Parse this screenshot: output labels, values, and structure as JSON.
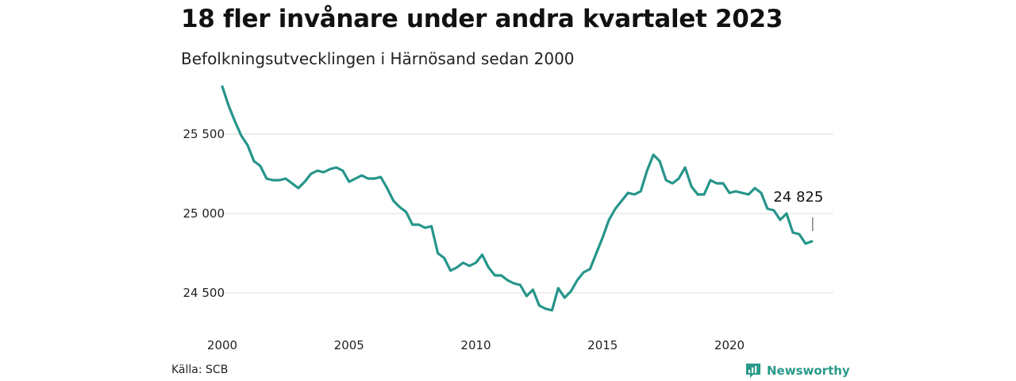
{
  "title": "18 fler invånare under andra kvartalet 2023",
  "subtitle": "Befolkningsutvecklingen i Härnösand sedan 2000",
  "source": "Källa: SCB",
  "brand": {
    "name": "Newsworthy",
    "icon": "bar-chart-logo-icon",
    "color": "#2a9a8a"
  },
  "chart_data": {
    "type": "line",
    "title": "18 fler invånare under andra kvartalet 2023",
    "subtitle": "Befolkningsutvecklingen i Härnösand sedan 2000",
    "xlabel": "",
    "ylabel": "",
    "grid": true,
    "line_color": "#26958a",
    "xlim": [
      2000,
      2024.1
    ],
    "ylim": [
      24370,
      25820
    ],
    "x_ticks": [
      2000,
      2005,
      2010,
      2015,
      2020
    ],
    "x_tick_labels": [
      "2000",
      "2005",
      "2010",
      "2015",
      "2020"
    ],
    "y_ticks": [
      24500,
      25000,
      25500
    ],
    "y_tick_labels": [
      "24 500",
      "25 000",
      "25 500"
    ],
    "annotation": {
      "text": "24 825",
      "x": 2023.25,
      "y": 24825
    },
    "series": [
      {
        "x": [
          2000,
          2000.25,
          2000.5,
          2000.75,
          2001,
          2001.25,
          2001.5,
          2001.75,
          2002,
          2002.25,
          2002.5,
          2002.75,
          2003,
          2003.25,
          2003.5,
          2003.75,
          2004,
          2004.25,
          2004.5,
          2004.75,
          2005,
          2005.25,
          2005.5,
          2005.75,
          2006,
          2006.25,
          2006.5,
          2006.75,
          2007,
          2007.25,
          2007.5,
          2007.75,
          2008,
          2008.25,
          2008.5,
          2008.75,
          2009,
          2009.25,
          2009.5,
          2009.75,
          2010,
          2010.25,
          2010.5,
          2010.75,
          2011,
          2011.25,
          2011.5,
          2011.75,
          2012,
          2012.25,
          2012.5,
          2012.75,
          2013,
          2013.25,
          2013.5,
          2013.75,
          2014,
          2014.25,
          2014.5,
          2014.75,
          2015,
          2015.25,
          2015.5,
          2015.75,
          2016,
          2016.25,
          2016.5,
          2016.75,
          2017,
          2017.25,
          2017.5,
          2017.75,
          2018,
          2018.25,
          2018.5,
          2018.75,
          2019,
          2019.25,
          2019.5,
          2019.75,
          2020,
          2020.25,
          2020.5,
          2020.75,
          2021,
          2021.25,
          2021.5,
          2021.75,
          2022,
          2022.25,
          2022.5,
          2022.75,
          2023,
          2023.25
        ],
        "y": [
          25800,
          25680,
          25580,
          25490,
          25430,
          25330,
          25300,
          25220,
          25210,
          25210,
          25220,
          25190,
          25160,
          25200,
          25250,
          25270,
          25260,
          25280,
          25290,
          25270,
          25200,
          25220,
          25240,
          25220,
          25220,
          25230,
          25160,
          25080,
          25040,
          25010,
          24930,
          24930,
          24910,
          24920,
          24750,
          24720,
          24640,
          24660,
          24690,
          24670,
          24690,
          24740,
          24660,
          24610,
          24610,
          24580,
          24560,
          24550,
          24480,
          24520,
          24420,
          24400,
          24390,
          24530,
          24470,
          24510,
          24580,
          24630,
          24650,
          24750,
          24850,
          24960,
          25030,
          25080,
          25130,
          25120,
          25140,
          25270,
          25370,
          25330,
          25210,
          25190,
          25220,
          25290,
          25170,
          25120,
          25120,
          25210,
          25190,
          25190,
          25130,
          25140,
          25130,
          25120,
          25160,
          25130,
          25030,
          25020,
          24960,
          25000,
          24880,
          24870,
          24810,
          24825
        ]
      }
    ]
  }
}
